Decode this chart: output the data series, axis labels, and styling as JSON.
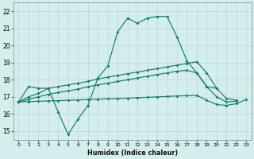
{
  "x_main": [
    0,
    1,
    2,
    3,
    4,
    5,
    6,
    7,
    8,
    9,
    10,
    11,
    12,
    13,
    14,
    15,
    16,
    17,
    18,
    19,
    20
  ],
  "y_main": [
    16.7,
    17.6,
    17.5,
    17.5,
    16.1,
    14.8,
    15.7,
    16.5,
    18.1,
    18.8,
    20.8,
    21.6,
    21.3,
    21.6,
    21.7,
    21.7,
    20.5,
    19.1,
    18.4,
    17.6,
    17.5
  ],
  "x_upper": [
    0,
    1,
    2,
    3,
    4,
    5,
    6,
    7,
    8,
    9,
    10,
    11,
    12,
    13,
    14,
    15,
    16,
    17,
    18,
    19,
    20,
    21,
    22
  ],
  "y_upper": [
    16.7,
    17.0,
    17.2,
    17.5,
    17.6,
    17.7,
    17.8,
    17.9,
    18.05,
    18.15,
    18.25,
    18.35,
    18.45,
    18.55,
    18.65,
    18.75,
    18.85,
    18.95,
    19.05,
    18.4,
    17.5,
    16.9,
    16.8
  ],
  "x_mid": [
    0,
    1,
    2,
    3,
    4,
    5,
    6,
    7,
    8,
    9,
    10,
    11,
    12,
    13,
    14,
    15,
    16,
    17,
    18,
    19,
    20,
    21,
    22
  ],
  "y_mid": [
    16.7,
    16.85,
    17.0,
    17.15,
    17.25,
    17.35,
    17.45,
    17.6,
    17.7,
    17.8,
    17.9,
    18.0,
    18.1,
    18.2,
    18.3,
    18.4,
    18.5,
    18.55,
    18.4,
    17.6,
    17.0,
    16.7,
    16.75
  ],
  "x_lower": [
    0,
    1,
    2,
    3,
    4,
    5,
    6,
    7,
    8,
    9,
    10,
    11,
    12,
    13,
    14,
    15,
    16,
    17,
    18,
    19,
    20,
    21,
    22,
    23
  ],
  "y_lower": [
    16.7,
    16.72,
    16.74,
    16.76,
    16.78,
    16.8,
    16.82,
    16.84,
    16.86,
    16.88,
    16.9,
    16.92,
    16.95,
    16.97,
    17.0,
    17.02,
    17.05,
    17.07,
    17.09,
    16.8,
    16.55,
    16.5,
    16.6,
    16.85
  ],
  "color": "#1a7a6e",
  "bg_color": "#d4eded",
  "grid_color": "#b8d8d8",
  "xlabel": "Humidex (Indice chaleur)",
  "ylim": [
    14.5,
    22.5
  ],
  "xlim": [
    -0.5,
    23.5
  ],
  "yticks": [
    15,
    16,
    17,
    18,
    19,
    20,
    21,
    22
  ],
  "xticks": [
    0,
    1,
    2,
    3,
    4,
    5,
    6,
    7,
    8,
    9,
    10,
    11,
    12,
    13,
    14,
    15,
    16,
    17,
    18,
    19,
    20,
    21,
    22,
    23
  ]
}
